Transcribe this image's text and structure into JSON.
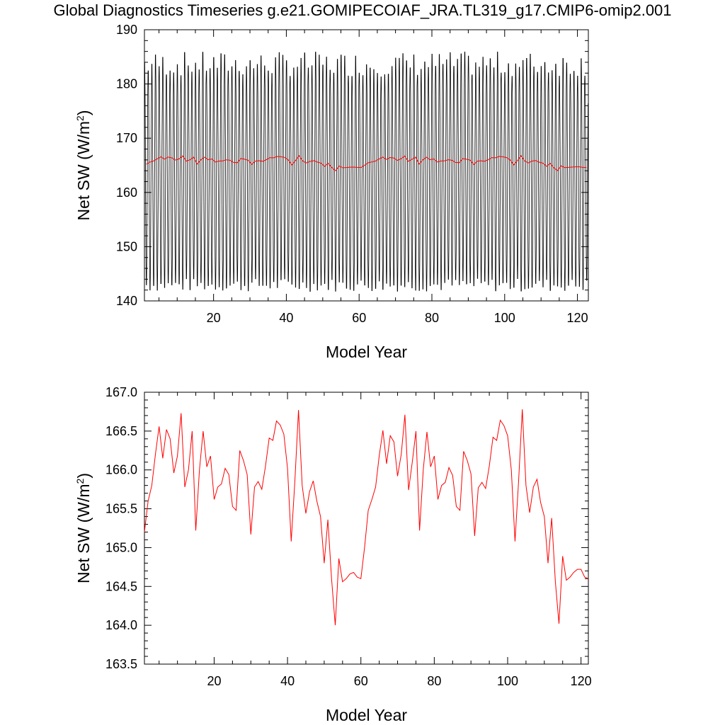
{
  "title": "Global Diagnostics Timeseries g.e21.GOMIPECOIAF_JRA.TL319_g17.CMIP6-omip2.001",
  "colors": {
    "monthly": "#000000",
    "annual": "#ff0000",
    "axis": "#000000"
  },
  "chart_data": [
    {
      "type": "line",
      "xlabel": "Model Year",
      "ylabel": "Net SW (W/m²)",
      "xlim": [
        1,
        123
      ],
      "ylim": [
        140,
        190
      ],
      "xticks": [
        20,
        40,
        60,
        80,
        100,
        120
      ],
      "yticks": [
        140,
        150,
        160,
        170,
        180,
        190
      ],
      "ytick_labels": [
        "140",
        "150",
        "160",
        "170",
        "180",
        "190"
      ],
      "grid": false,
      "series": [
        {
          "name": "",
          "color": "#000000",
          "description_free": true,
          "seasonal_cycle": {
            "min_range": [
              141,
              143.5
            ],
            "max_range": [
              182,
              186.7
            ],
            "period_years": 1
          }
        },
        {
          "name": "",
          "color": "#ff0000",
          "source": "annual_mean"
        }
      ]
    },
    {
      "type": "line",
      "xlabel": "Model Year",
      "ylabel": "Net SW (W/m²)",
      "xlim": [
        1,
        122
      ],
      "ylim": [
        163.5,
        167.0
      ],
      "xticks": [
        20,
        40,
        60,
        80,
        100,
        120
      ],
      "yticks": [
        163.5,
        164.0,
        164.5,
        165.0,
        165.5,
        166.0,
        166.5,
        167.0
      ],
      "ytick_labels": [
        "163.5",
        "164.0",
        "164.5",
        "165.0",
        "165.5",
        "166.0",
        "166.5",
        "167.0"
      ],
      "grid": false,
      "series": [
        {
          "name": "",
          "color": "#ff0000",
          "x_start": 1,
          "values": [
            165.2,
            165.6,
            165.8,
            166.2,
            166.56,
            166.15,
            166.52,
            166.4,
            165.96,
            166.18,
            166.73,
            165.78,
            166.0,
            166.5,
            165.22,
            166.0,
            166.5,
            166.04,
            166.18,
            165.62,
            165.78,
            165.82,
            166.02,
            165.94,
            165.53,
            165.48,
            166.25,
            166.12,
            165.94,
            165.17,
            165.78,
            165.85,
            165.75,
            166.05,
            166.41,
            166.38,
            166.63,
            166.58,
            166.46,
            166.02,
            165.08,
            165.86,
            166.77,
            165.8,
            165.44,
            165.72,
            165.86,
            165.6,
            165.4,
            164.8,
            165.36,
            164.6,
            164.0,
            164.86,
            164.56,
            164.6,
            164.66,
            164.68,
            164.62,
            164.6,
            165.0,
            165.48,
            165.62,
            165.78,
            166.18,
            166.51,
            166.08,
            166.44,
            166.36,
            165.92,
            166.2,
            166.71,
            165.74,
            166.1,
            166.5,
            165.22,
            166.0,
            166.49,
            166.04,
            166.18,
            165.62,
            165.8,
            165.84,
            166.03,
            165.93,
            165.53,
            165.48,
            166.24,
            166.12,
            165.95,
            165.15,
            165.77,
            165.84,
            165.76,
            166.05,
            166.42,
            166.38,
            166.64,
            166.57,
            166.44,
            166.0,
            165.08,
            165.86,
            166.78,
            165.8,
            165.45,
            165.78,
            165.88,
            165.58,
            165.4,
            164.8,
            165.38,
            164.56,
            164.02,
            164.89,
            164.58,
            164.62,
            164.68,
            164.72,
            164.72,
            164.62,
            164.6
          ]
        }
      ]
    }
  ]
}
